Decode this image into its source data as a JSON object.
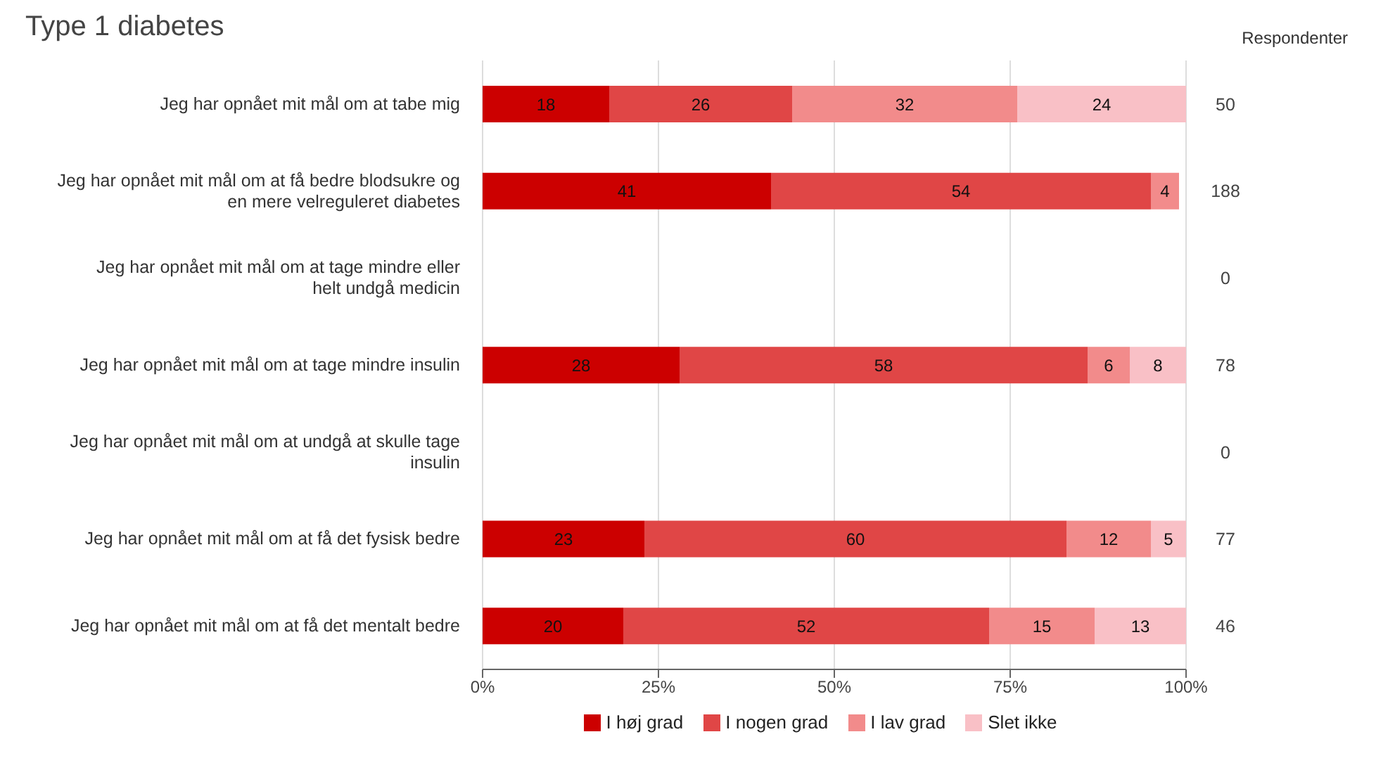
{
  "chart_data": {
    "type": "bar",
    "orientation": "horizontal",
    "stacked": true,
    "title": "Type 1 diabetes",
    "y2label": "Respondenter",
    "categories": [
      "Jeg har opnået mit mål om at tabe mig",
      "Jeg har opnået mit mål om at få bedre blodsukre og en mere velreguleret diabetes",
      "Jeg har opnået mit mål om at tage mindre eller helt undgå medicin",
      "Jeg har opnået mit mål om at tage mindre insulin",
      "Jeg har opnået mit mål om at undgå at skulle tage insulin",
      "Jeg har opnået mit mål om at få det fysisk bedre",
      "Jeg har opnået mit mål om at få det mentalt bedre"
    ],
    "y2_categories": [
      "50",
      "188",
      "0",
      "78",
      "0",
      "77",
      "46"
    ],
    "series": [
      {
        "name": "I høj grad",
        "color": "#cc0000",
        "values": [
          18,
          41,
          null,
          28,
          null,
          23,
          20
        ]
      },
      {
        "name": "I nogen grad",
        "color": "#e04646",
        "values": [
          26,
          54,
          null,
          58,
          null,
          60,
          52
        ]
      },
      {
        "name": "I lav grad",
        "color": "#f28b8b",
        "values": [
          32,
          4,
          null,
          6,
          null,
          12,
          15
        ]
      },
      {
        "name": "Slet ikke",
        "color": "#f9c0c6",
        "values": [
          24,
          null,
          null,
          8,
          null,
          5,
          13
        ]
      }
    ],
    "xlim": [
      0,
      100
    ],
    "xticks": [
      {
        "value": 0,
        "label": "0%"
      },
      {
        "value": 25,
        "label": "25%"
      },
      {
        "value": 50,
        "label": "50%"
      },
      {
        "value": 75,
        "label": "75%"
      },
      {
        "value": 100,
        "label": "100%"
      }
    ],
    "data_labels": true,
    "grid": "x",
    "legend": "bottom"
  }
}
